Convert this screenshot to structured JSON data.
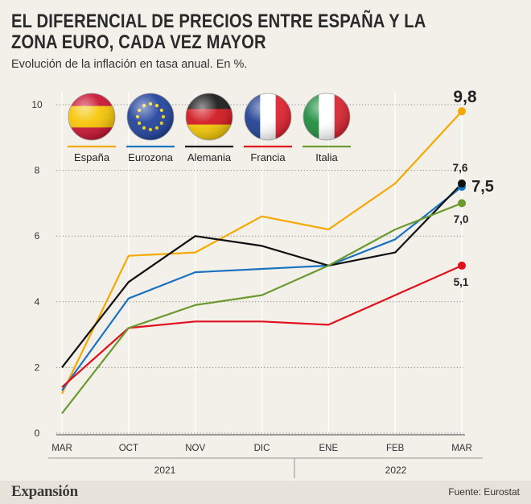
{
  "header": {
    "title": "EL DIFERENCIAL DE PRECIOS ENTRE ESPAÑA Y LA ZONA EURO, CADA VEZ MAYOR",
    "subtitle": "Evolución de la inflación en tasa anual. En %."
  },
  "footer": {
    "brand": "Expansión",
    "source": "Fuente: Eurostat"
  },
  "chart_data": {
    "type": "line",
    "categories": [
      "MAR",
      "OCT",
      "NOV",
      "DIC",
      "ENE",
      "FEB",
      "MAR"
    ],
    "year_groups": [
      {
        "label": "2021",
        "from": 0,
        "to": 3
      },
      {
        "label": "2022",
        "from": 4,
        "to": 6
      }
    ],
    "ylim": [
      0,
      10
    ],
    "yticks": [
      0,
      2,
      4,
      6,
      8,
      10
    ],
    "grid": true,
    "legend": "top",
    "series": [
      {
        "name": "España",
        "color": "#f5a800",
        "flag": "spain",
        "values": [
          1.2,
          5.4,
          5.5,
          6.6,
          6.2,
          7.6,
          9.8
        ],
        "end_label": "9,8"
      },
      {
        "name": "Eurozona",
        "color": "#1a73c0",
        "flag": "eu",
        "values": [
          1.3,
          4.1,
          4.9,
          5.0,
          5.1,
          5.9,
          7.5
        ],
        "end_label": "7,5"
      },
      {
        "name": "Alemania",
        "color": "#111111",
        "flag": "germany",
        "values": [
          2.0,
          4.6,
          6.0,
          5.7,
          5.1,
          5.5,
          7.6
        ],
        "end_label": "7,6"
      },
      {
        "name": "Francia",
        "color": "#e0101c",
        "flag": "france",
        "values": [
          1.4,
          3.2,
          3.4,
          3.4,
          3.3,
          4.2,
          5.1
        ],
        "end_label": "5,1"
      },
      {
        "name": "Italia",
        "color": "#6a9a30",
        "flag": "italy",
        "values": [
          0.6,
          3.2,
          3.9,
          4.2,
          5.1,
          6.2,
          7.0
        ],
        "end_label": "7,0"
      }
    ]
  }
}
